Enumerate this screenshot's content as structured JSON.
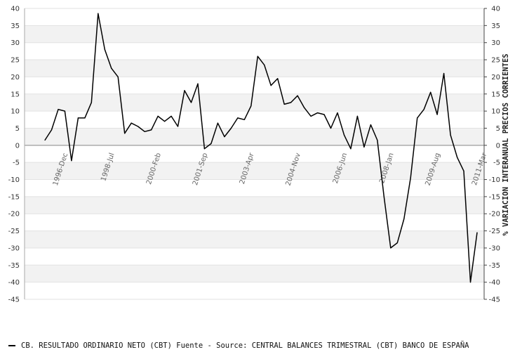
{
  "chart_data": {
    "type": "line",
    "title": "",
    "ylabel_right": "% VARIACION INTERANUAL PRECIOS CORRIENTES",
    "ylim": [
      -45,
      40
    ],
    "y_ticks": [
      40,
      35,
      30,
      25,
      20,
      15,
      10,
      5,
      0,
      -5,
      -10,
      -15,
      -20,
      -25,
      -30,
      -35,
      -40,
      -45
    ],
    "y_ticks_right": [
      40,
      35,
      30,
      25,
      20,
      15,
      10,
      5,
      0,
      -5,
      -10,
      -15,
      -20,
      -25,
      -30,
      -35,
      -40,
      -45
    ],
    "x_ticks": [
      {
        "label": "1996-Dec",
        "index": 3
      },
      {
        "label": "1998-Jul",
        "index": 10
      },
      {
        "label": "2000-Feb",
        "index": 17
      },
      {
        "label": "2001-Sep",
        "index": 24
      },
      {
        "label": "2003-Apr",
        "index": 31
      },
      {
        "label": "2004-Nov",
        "index": 38
      },
      {
        "label": "2006-Jun",
        "index": 45
      },
      {
        "label": "2008-Jan",
        "index": 52
      },
      {
        "label": "2009-Aug",
        "index": 59
      },
      {
        "label": "2011-Mar",
        "index": 66
      }
    ],
    "grid": "horizontal-bands",
    "legend_position": "bottom-left",
    "series": [
      {
        "name": "CB. RESULTADO ORDINARIO NETO  (CBT)  Fuente - Source: CENTRAL BALANCES TRIMESTRAL (CBT) BANCO DE ESPAÑA",
        "color": "#000000",
        "values": [
          1.5,
          4.5,
          10.5,
          10,
          -4.5,
          8,
          8,
          12.5,
          38.5,
          28,
          22.5,
          20,
          3.5,
          6.5,
          5.5,
          4,
          4.5,
          8.5,
          7,
          8.5,
          5.5,
          16,
          12.5,
          18,
          -1,
          0.5,
          6.5,
          2.5,
          5,
          8,
          7.5,
          11.5,
          26,
          23.5,
          17.5,
          19.5,
          12,
          12.5,
          14.5,
          11,
          8.5,
          9.5,
          9,
          5,
          9.5,
          3,
          -1,
          8.5,
          -0.5,
          6,
          1.5,
          -15,
          -30,
          -28.5,
          -21.5,
          -9.5,
          8,
          10.5,
          15.5,
          9,
          21,
          3,
          -3.5,
          -7.5,
          -40,
          -25.5
        ]
      }
    ]
  },
  "legend": {
    "text": "CB. RESULTADO ORDINARIO NETO  (CBT)  Fuente - Source: CENTRAL BALANCES TRIMESTRAL (CBT) BANCO DE ESPAÑA"
  }
}
